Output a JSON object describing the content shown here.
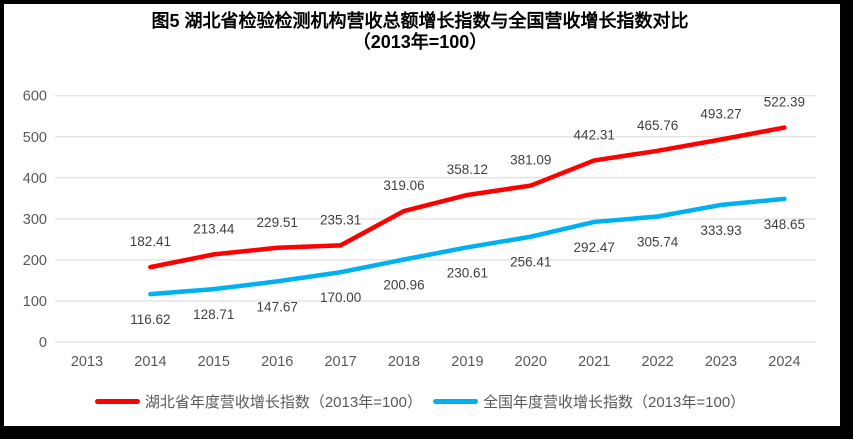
{
  "figure": {
    "title_line1": "图5 湖北省检验检测机构营收总额增长指数与全国营收增长指数对比",
    "title_line2": "（2013年=100）"
  },
  "chart_data": {
    "type": "line",
    "title": "图5 湖北省检验检测机构营收总额增长指数与全国营收增长指数对比（2013年=100）",
    "categories": [
      "2013",
      "2014",
      "2015",
      "2016",
      "2017",
      "2018",
      "2019",
      "2020",
      "2021",
      "2022",
      "2023",
      "2024"
    ],
    "series": [
      {
        "name": "湖北省年度营收增长指数（2013年=100）",
        "color": "#FF0000",
        "label_position": "above",
        "values": [
          null,
          182.41,
          213.44,
          229.51,
          235.31,
          319.06,
          358.12,
          381.09,
          442.31,
          465.76,
          493.27,
          522.39
        ],
        "labels": [
          null,
          "182.41",
          "213.44",
          "229.51",
          "235.31",
          "319.06",
          "358.12",
          "381.09",
          "442.31",
          "465.76",
          "493.27",
          "522.39"
        ]
      },
      {
        "name": "全国年度营收增长指数（2013年=100）",
        "color": "#00B0F0",
        "label_position": "below",
        "values": [
          null,
          116.62,
          128.71,
          147.67,
          170.0,
          200.96,
          230.61,
          256.41,
          292.47,
          305.74,
          333.93,
          348.65
        ],
        "labels": [
          null,
          "116.62",
          "128.71",
          "147.67",
          "170.00",
          "200.96",
          "230.61",
          "256.41",
          "292.47",
          "305.74",
          "333.93",
          "348.65"
        ]
      }
    ],
    "ylim": [
      0,
      600
    ],
    "yticks": [
      0,
      100,
      200,
      300,
      400,
      500,
      600
    ],
    "grid": true,
    "legend_position": "bottom",
    "colors": {
      "gridline": "#D9D9D9",
      "axis_text": "#595959",
      "data_label_text": "#404040",
      "title_text": "#000000",
      "frame": "#000000"
    }
  }
}
